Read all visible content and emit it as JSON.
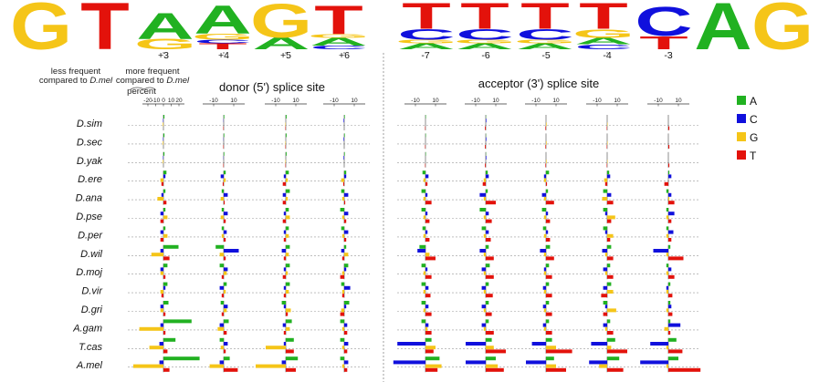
{
  "colors": {
    "A": "#21b121",
    "C": "#1010dd",
    "G": "#f5c518",
    "T": "#e3120b"
  },
  "logo": {
    "donor_letters": [
      {
        "stack": [
          [
            "G",
            1.0
          ]
        ]
      },
      {
        "stack": [
          [
            "T",
            1.0
          ]
        ]
      },
      {
        "stack": [
          [
            "G",
            0.22
          ],
          [
            "A",
            0.55
          ]
        ]
      },
      {
        "stack": [
          [
            "T",
            0.12
          ],
          [
            "C",
            0.08
          ],
          [
            "G",
            0.12
          ],
          [
            "A",
            0.6
          ]
        ]
      },
      {
        "stack": [
          [
            "A",
            0.25
          ],
          [
            "G",
            0.72
          ]
        ]
      },
      {
        "stack": [
          [
            "C",
            0.08
          ],
          [
            "A",
            0.16
          ],
          [
            "G",
            0.08
          ],
          [
            "T",
            0.6
          ]
        ]
      }
    ],
    "acceptor_letters": [
      {
        "stack": [
          [
            "A",
            0.12
          ],
          [
            "G",
            0.08
          ],
          [
            "C",
            0.22
          ],
          [
            "T",
            0.55
          ]
        ]
      },
      {
        "stack": [
          [
            "A",
            0.12
          ],
          [
            "G",
            0.08
          ],
          [
            "C",
            0.22
          ],
          [
            "T",
            0.55
          ]
        ]
      },
      {
        "stack": [
          [
            "A",
            0.12
          ],
          [
            "G",
            0.08
          ],
          [
            "C",
            0.22
          ],
          [
            "T",
            0.55
          ]
        ]
      },
      {
        "stack": [
          [
            "C",
            0.1
          ],
          [
            "A",
            0.14
          ],
          [
            "G",
            0.18
          ],
          [
            "T",
            0.55
          ]
        ]
      },
      {
        "stack": [
          [
            "T",
            0.28
          ],
          [
            "C",
            0.62
          ]
        ]
      },
      {
        "stack": [
          [
            "A",
            1.0
          ]
        ]
      },
      {
        "stack": [
          [
            "G",
            1.0
          ]
        ]
      }
    ]
  },
  "text": {
    "less_frequent": "less frequent",
    "compared_to": "compared to ",
    "dmel": "D.mel",
    "more_frequent": "more frequent",
    "percent": "percent",
    "donor_title": "donor (5') splice site",
    "acceptor_title": "acceptor (3') splice site"
  },
  "chart_data": {
    "type": "bar",
    "title": "",
    "panels": [
      "donor (5') splice site",
      "acceptor (3') splice site"
    ],
    "positions": [
      "+3",
      "+4",
      "+5",
      "+6",
      "-7",
      "-6",
      "-5",
      "-4",
      "-3"
    ],
    "first_axis_ticks": [
      "-20",
      "-10",
      "0",
      "10",
      "20"
    ],
    "axis_ticks": [
      "-10",
      "10"
    ],
    "xlim": [
      -25,
      25
    ],
    "xlabel": "percent",
    "legend": [
      "A",
      "C",
      "G",
      "T"
    ],
    "legend_placement": "right",
    "species": [
      "D.sim",
      "D.sec",
      "D.yak",
      "D.ere",
      "D.ana",
      "D.pse",
      "D.per",
      "D.wil",
      "D.moj",
      "D.vir",
      "D.gri",
      "A.gam",
      "T.cas",
      "A.mel"
    ],
    "series_order": [
      "A",
      "C",
      "G",
      "T"
    ],
    "values": [
      [
        [
          0.5,
          -0.2,
          -0.3,
          0
        ],
        [
          0.3,
          -0.1,
          0,
          -0.2
        ],
        [
          0.4,
          0,
          -0.2,
          -0.2
        ],
        [
          0.3,
          -0.3,
          0,
          0
        ],
        [
          0.2,
          0,
          0,
          -0.2
        ],
        [
          0.1,
          0.3,
          0,
          -0.4
        ],
        [
          0,
          0,
          0.3,
          -0.3
        ],
        [
          0,
          0,
          0.2,
          -0.2
        ],
        [
          0,
          0,
          0,
          0.5
        ]
      ],
      [
        [
          0.5,
          -0.2,
          -0.3,
          0
        ],
        [
          0.3,
          -0.1,
          0,
          -0.2
        ],
        [
          0.4,
          0,
          -0.2,
          -0.2
        ],
        [
          0.3,
          -0.3,
          0,
          0
        ],
        [
          0.2,
          0,
          0,
          -0.2
        ],
        [
          0.1,
          0.3,
          0,
          -0.4
        ],
        [
          0,
          0,
          0.3,
          -0.3
        ],
        [
          0,
          0,
          0.2,
          -0.2
        ],
        [
          0,
          0,
          0,
          0.5
        ]
      ],
      [
        [
          0.5,
          -0.2,
          -0.3,
          0
        ],
        [
          0.3,
          -0.1,
          0,
          -0.2
        ],
        [
          0.4,
          0,
          -0.2,
          -0.2
        ],
        [
          0.3,
          -0.3,
          0,
          0
        ],
        [
          0.2,
          0,
          0,
          -0.2
        ],
        [
          0.1,
          0.3,
          0,
          -0.4
        ],
        [
          0,
          0,
          0.3,
          -0.3
        ],
        [
          0,
          0,
          0.2,
          -0.2
        ],
        [
          0,
          0,
          0,
          0.5
        ]
      ],
      [
        [
          1.5,
          1,
          -1.5,
          -1
        ],
        [
          1,
          -1.5,
          1,
          -0.5
        ],
        [
          1.5,
          -1,
          1,
          -1.5
        ],
        [
          1,
          1,
          -1.5,
          -0.5
        ],
        [
          -1.5,
          1.5,
          -1,
          1
        ],
        [
          1,
          1.5,
          -1,
          -1.5
        ],
        [
          1.5,
          -1,
          -1,
          0.5
        ],
        [
          1,
          1.5,
          -1.5,
          -1
        ],
        [
          0.5,
          1.5,
          0,
          -2
        ]
      ],
      [
        [
          1,
          -1,
          -3,
          1.5
        ],
        [
          -1,
          2,
          -1.5,
          0.5
        ],
        [
          2,
          -1.5,
          1,
          -1.5
        ],
        [
          -1.5,
          2,
          -1,
          0.5
        ],
        [
          -2,
          1,
          -1,
          3
        ],
        [
          1,
          -3,
          -1,
          5
        ],
        [
          1,
          -2,
          -1,
          4
        ],
        [
          -2,
          2,
          -2.5,
          3
        ],
        [
          -1,
          1.5,
          0.5,
          3
        ]
      ],
      [
        [
          1,
          -1.5,
          2,
          -1.5
        ],
        [
          -1,
          2,
          -1.5,
          1
        ],
        [
          1.5,
          -1,
          2,
          -1.5
        ],
        [
          -2,
          2,
          -1,
          1
        ],
        [
          -2,
          1,
          -1,
          2
        ],
        [
          -3,
          1.5,
          -1,
          3
        ],
        [
          -2,
          1,
          -1,
          2
        ],
        [
          -2,
          -1,
          4,
          2
        ],
        [
          -1,
          3,
          -1,
          1.5
        ]
      ],
      [
        [
          1,
          -1.5,
          2,
          -1.5
        ],
        [
          -1,
          1.5,
          -1,
          1
        ],
        [
          1.5,
          -1,
          1.5,
          -1
        ],
        [
          -1.5,
          2,
          -1,
          1
        ],
        [
          -1.5,
          1,
          -1,
          2
        ],
        [
          -2,
          1.5,
          -1,
          2.5
        ],
        [
          -1.5,
          1,
          -1,
          2
        ],
        [
          -2,
          -1,
          3,
          1.5
        ],
        [
          -1,
          2.5,
          -1,
          1.5
        ]
      ],
      [
        [
          7.5,
          -1.5,
          -6,
          3
        ],
        [
          -4,
          7.5,
          -2,
          1
        ],
        [
          2,
          -2,
          1.5,
          -1
        ],
        [
          1,
          -1.5,
          2,
          -1
        ],
        [
          -3,
          -4,
          2,
          5
        ],
        [
          1.5,
          -3,
          -1,
          4
        ],
        [
          2,
          -3,
          -1,
          4
        ],
        [
          2,
          -2.5,
          -1,
          3
        ],
        [
          1,
          -7.5,
          -1,
          7.5
        ]
      ],
      [
        [
          2,
          -1.5,
          -1.5,
          1
        ],
        [
          -2,
          2,
          1.5,
          -1
        ],
        [
          2,
          -1,
          1,
          -1.5
        ],
        [
          2,
          1,
          -1,
          -2
        ],
        [
          -2,
          1,
          -1,
          3
        ],
        [
          2,
          -2,
          -1,
          4
        ],
        [
          1.5,
          -1,
          -1,
          3
        ],
        [
          1.5,
          -2,
          -1,
          3
        ],
        [
          -1,
          1.5,
          -1,
          3
        ]
      ],
      [
        [
          2,
          1,
          -1.5,
          -1
        ],
        [
          1.5,
          -2,
          1,
          -1
        ],
        [
          2,
          -1,
          1.5,
          -1
        ],
        [
          -1.5,
          3,
          -1,
          -1
        ],
        [
          -2,
          1.5,
          -1,
          2.5
        ],
        [
          1.5,
          -2,
          -1,
          3.5
        ],
        [
          1.5,
          -1.5,
          -1,
          3
        ],
        [
          2,
          -2,
          3,
          -3
        ],
        [
          1,
          -1,
          -1,
          2
        ]
      ],
      [
        [
          2.5,
          -1.5,
          -1.5,
          1
        ],
        [
          -1.5,
          2,
          1.5,
          -1
        ],
        [
          -2,
          -1,
          2.5,
          1
        ],
        [
          2.5,
          1,
          -1.5,
          -2
        ],
        [
          -2,
          1.5,
          -1,
          3
        ],
        [
          1.5,
          -2,
          -1,
          3
        ],
        [
          1.5,
          -1.5,
          -1,
          3
        ],
        [
          -2,
          -1,
          4.5,
          -2
        ],
        [
          1,
          1.5,
          -1,
          2
        ]
      ],
      [
        [
          14,
          -1.5,
          -12,
          1
        ],
        [
          2.5,
          -2,
          -3,
          1.5
        ],
        [
          3,
          -1.5,
          2,
          -1
        ],
        [
          -2,
          1.5,
          -1,
          1.5
        ],
        [
          -2,
          1.5,
          1,
          3
        ],
        [
          1.5,
          -2,
          -1,
          4
        ],
        [
          1.5,
          -1.5,
          -1,
          3
        ],
        [
          1.5,
          -2,
          -1,
          3
        ],
        [
          1,
          6,
          -2,
          1
        ]
      ],
      [
        [
          6,
          -2,
          -7,
          2
        ],
        [
          -2,
          2,
          -1.5,
          1
        ],
        [
          4,
          -1,
          -10,
          4
        ],
        [
          -2,
          2,
          -1,
          1.5
        ],
        [
          3,
          -14,
          5,
          4
        ],
        [
          3,
          -10,
          4,
          10
        ],
        [
          3,
          -7,
          5,
          13
        ],
        [
          4,
          -8,
          2,
          10
        ],
        [
          4,
          -9,
          -1,
          7
        ]
      ],
      [
        [
          18,
          -2,
          -15,
          3
        ],
        [
          3,
          -2,
          -7,
          7
        ],
        [
          6,
          -2,
          -15,
          5
        ],
        [
          -2,
          2,
          -1,
          1.5
        ],
        [
          7,
          -16,
          8,
          6
        ],
        [
          5,
          -10,
          6,
          9
        ],
        [
          4,
          -10,
          5,
          10
        ],
        [
          6,
          -9,
          -4,
          8
        ],
        [
          5,
          -14,
          -1,
          16
        ]
      ]
    ]
  }
}
